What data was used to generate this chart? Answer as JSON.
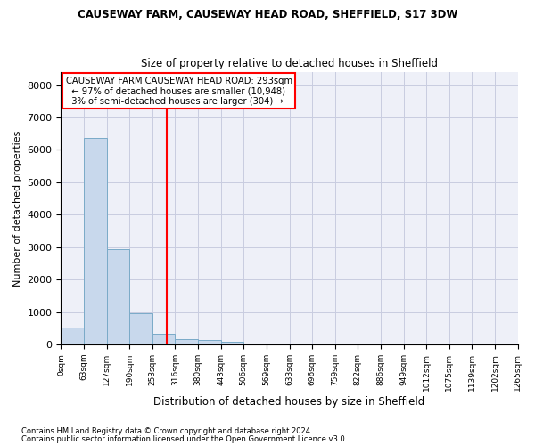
{
  "title1": "CAUSEWAY FARM, CAUSEWAY HEAD ROAD, SHEFFIELD, S17 3DW",
  "title2": "Size of property relative to detached houses in Sheffield",
  "xlabel": "Distribution of detached houses by size in Sheffield",
  "ylabel": "Number of detached properties",
  "footnote1": "Contains HM Land Registry data © Crown copyright and database right 2024.",
  "footnote2": "Contains public sector information licensed under the Open Government Licence v3.0.",
  "annotation_title": "CAUSEWAY FARM CAUSEWAY HEAD ROAD: 293sqm",
  "annotation_line1": "← 97% of detached houses are smaller (10,948)",
  "annotation_line2": "3% of semi-detached houses are larger (304) →",
  "property_size": 293,
  "bar_color": "#c8d8ec",
  "bar_edge_color": "#7aaac8",
  "vline_color": "red",
  "grid_color": "#c8cce0",
  "background_color": "#eef0f8",
  "xtick_labels": [
    "0sqm",
    "63sqm",
    "127sqm",
    "190sqm",
    "253sqm",
    "316sqm",
    "380sqm",
    "443sqm",
    "506sqm",
    "569sqm",
    "633sqm",
    "696sqm",
    "759sqm",
    "822sqm",
    "886sqm",
    "949sqm",
    "1012sqm",
    "1075sqm",
    "1139sqm",
    "1202sqm",
    "1265sqm"
  ],
  "xtick_values": [
    0,
    63,
    127,
    190,
    253,
    316,
    380,
    443,
    506,
    569,
    633,
    696,
    759,
    822,
    886,
    949,
    1012,
    1075,
    1139,
    1202,
    1265
  ],
  "bar_lefts": [
    0,
    63,
    127,
    190,
    253,
    316,
    380,
    443,
    506,
    569,
    633,
    696,
    759,
    822,
    886,
    949,
    1012,
    1075,
    1139,
    1202
  ],
  "bar_widths": [
    63,
    64,
    63,
    63,
    63,
    64,
    63,
    63,
    63,
    64,
    63,
    63,
    63,
    64,
    63,
    63,
    63,
    64,
    63,
    63
  ],
  "bar_heights": [
    530,
    6380,
    2930,
    970,
    340,
    180,
    130,
    80,
    0,
    0,
    0,
    0,
    0,
    0,
    0,
    0,
    0,
    0,
    0,
    0
  ],
  "ylim": [
    0,
    8400
  ],
  "yticks": [
    0,
    1000,
    2000,
    3000,
    4000,
    5000,
    6000,
    7000,
    8000
  ],
  "xlim": [
    0,
    1265
  ]
}
